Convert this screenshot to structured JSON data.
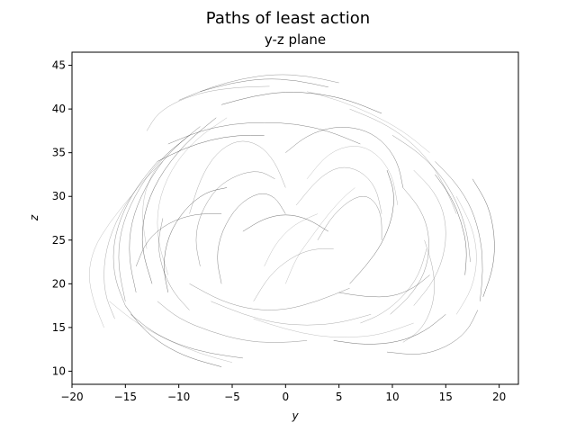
{
  "chart_data": {
    "type": "line",
    "title": "Paths of least action",
    "subtitle": "y-z plane",
    "xlabel": "y",
    "ylabel": "z",
    "xlim": [
      -20,
      21.8
    ],
    "ylim": [
      8.5,
      46.5
    ],
    "xticks": [
      -20,
      -15,
      -10,
      -5,
      0,
      5,
      10,
      15,
      20
    ],
    "yticks": [
      10,
      15,
      20,
      25,
      30,
      35,
      40,
      45
    ],
    "grid": false,
    "legend": "none",
    "line_color": "#000000",
    "series": [
      {
        "x": [
          -17,
          -18,
          -18.5,
          -18,
          -16.5,
          -14.5
        ],
        "y": [
          15,
          18,
          21,
          24,
          27,
          30
        ]
      },
      {
        "x": [
          -16,
          -17,
          -17,
          -16,
          -14,
          -11.5
        ],
        "y": [
          16,
          19,
          23,
          27,
          31,
          34
        ]
      },
      {
        "x": [
          -15,
          -15.7,
          -15.5,
          -14.2,
          -12,
          -9
        ],
        "y": [
          18,
          22,
          26,
          30,
          34,
          37
        ]
      },
      {
        "x": [
          -14,
          -14.7,
          -14.5,
          -13.2,
          -11,
          -8
        ],
        "y": [
          19,
          23,
          27,
          31,
          35,
          38
        ]
      },
      {
        "x": [
          -12.5,
          -13.5,
          -13.3,
          -12,
          -9.5,
          -6.5
        ],
        "y": [
          20,
          24,
          28,
          32,
          36,
          39
        ]
      },
      {
        "x": [
          -11,
          -12,
          -12,
          -10.8,
          -8.5,
          -5.5
        ],
        "y": [
          21,
          25,
          29,
          33,
          36.5,
          39
        ]
      },
      {
        "x": [
          -13,
          -12,
          -10,
          -7.5,
          -4.5,
          -1.5
        ],
        "y": [
          37.5,
          39.5,
          41,
          42,
          42.5,
          42.6
        ]
      },
      {
        "x": [
          -10,
          -7,
          -4,
          -1,
          2,
          5
        ],
        "y": [
          41,
          42.5,
          43.5,
          44,
          43.8,
          43
        ]
      },
      {
        "x": [
          -8,
          -5,
          -2,
          1,
          4
        ],
        "y": [
          42,
          43,
          43.5,
          43.3,
          42.5
        ]
      },
      {
        "x": [
          -6,
          -3,
          0,
          3,
          6,
          9
        ],
        "y": [
          40.5,
          41.5,
          42,
          41.8,
          41,
          39.5
        ]
      },
      {
        "x": [
          2,
          5,
          8,
          11,
          13.5
        ],
        "y": [
          42,
          41,
          39.5,
          37.5,
          35
        ]
      },
      {
        "x": [
          6,
          9,
          11.5,
          13.5,
          15,
          16
        ],
        "y": [
          40,
          38.5,
          36.5,
          34,
          31,
          28
        ]
      },
      {
        "x": [
          10,
          12.5,
          14.5,
          16,
          17,
          17.3
        ],
        "y": [
          37,
          35,
          32.5,
          29.5,
          26,
          22.5
        ]
      },
      {
        "x": [
          14,
          16,
          17.5,
          18.3,
          18.5,
          18.2
        ],
        "y": [
          34,
          31.5,
          28.5,
          25,
          21.5,
          18
        ]
      },
      {
        "x": [
          17.5,
          19,
          19.6,
          19.5,
          18.5
        ],
        "y": [
          32,
          29,
          25.5,
          22,
          18.5
        ]
      },
      {
        "x": [
          16,
          17.5,
          18,
          17.5,
          16
        ],
        "y": [
          30,
          26.5,
          23,
          19.5,
          16.5
        ]
      },
      {
        "x": [
          12,
          14,
          15,
          15,
          14,
          12
        ],
        "y": [
          33,
          30.5,
          27.5,
          24,
          20.5,
          17.5
        ]
      },
      {
        "x": [
          11,
          12.7,
          13.5,
          13.3,
          12,
          9.8
        ],
        "y": [
          31,
          28.5,
          25.5,
          22,
          19,
          16.5
        ]
      },
      {
        "x": [
          18,
          17,
          15,
          12.5,
          9.5
        ],
        "y": [
          17,
          14.5,
          12.7,
          11.8,
          12.2
        ]
      },
      {
        "x": [
          15,
          13,
          10.5,
          7.5,
          4.5
        ],
        "y": [
          16.5,
          14.5,
          13.3,
          13,
          13.5
        ]
      },
      {
        "x": [
          12,
          9,
          6,
          3,
          0,
          -3
        ],
        "y": [
          15.5,
          14.2,
          13.8,
          14,
          14.8,
          16
        ]
      },
      {
        "x": [
          8,
          5,
          2,
          -1,
          -4,
          -7
        ],
        "y": [
          16.5,
          15.5,
          15.2,
          15.5,
          16.5,
          18
        ]
      },
      {
        "x": [
          2,
          -1,
          -4,
          -7,
          -10,
          -12
        ],
        "y": [
          13.5,
          13.2,
          13.5,
          14.5,
          16,
          18
        ]
      },
      {
        "x": [
          -4,
          -7,
          -10,
          -12.5,
          -14.5
        ],
        "y": [
          11.5,
          12,
          13,
          14.5,
          16.5
        ]
      },
      {
        "x": [
          -6,
          -9,
          -11.5,
          -13.5,
          -15
        ],
        "y": [
          10.5,
          11.5,
          13,
          15,
          17.5
        ]
      },
      {
        "x": [
          -5,
          -8,
          -11,
          -14,
          -16.5
        ],
        "y": [
          11,
          12,
          13.5,
          15.5,
          18
        ]
      },
      {
        "x": [
          -9,
          -8,
          -6.5,
          -4.5,
          -2.5,
          -1,
          0
        ],
        "y": [
          28,
          32,
          35,
          36.5,
          36,
          34,
          31
        ]
      },
      {
        "x": [
          -8,
          -8.5,
          -8,
          -6.5,
          -4.5,
          -2.5,
          -1
        ],
        "y": [
          22,
          25,
          28,
          31,
          32.5,
          33,
          32
        ]
      },
      {
        "x": [
          -6,
          -6.5,
          -6,
          -4.5,
          -2.5,
          -1,
          0
        ],
        "y": [
          20,
          23,
          26,
          29,
          30.5,
          30,
          28
        ]
      },
      {
        "x": [
          -11,
          -11.5,
          -11,
          -9.5,
          -7.5,
          -5.5
        ],
        "y": [
          19,
          22,
          25.5,
          28.5,
          30.5,
          31
        ]
      },
      {
        "x": [
          2,
          4,
          6.5,
          8.5,
          10,
          10.5
        ],
        "y": [
          32,
          35,
          36,
          35,
          32.5,
          29
        ]
      },
      {
        "x": [
          1,
          3,
          5,
          7,
          8.5,
          9
        ],
        "y": [
          29,
          32,
          33.5,
          33,
          31,
          28
        ]
      },
      {
        "x": [
          3,
          4.5,
          6.5,
          8,
          9,
          9
        ],
        "y": [
          25,
          28,
          30,
          30,
          28,
          25
        ]
      },
      {
        "x": [
          0,
          2,
          4.5,
          7,
          9,
          10.5,
          11
        ],
        "y": [
          35,
          37,
          38,
          37.8,
          36.5,
          34,
          31
        ]
      },
      {
        "x": [
          6,
          7.5,
          9,
          10,
          10.2,
          9.5
        ],
        "y": [
          20,
          22,
          24.5,
          27.5,
          30.5,
          33
        ]
      },
      {
        "x": [
          0,
          1,
          2.5,
          4,
          5.5,
          6.5
        ],
        "y": [
          20,
          23,
          25.5,
          28,
          30,
          31
        ]
      },
      {
        "x": [
          -3,
          -1.5,
          0.5,
          2.5,
          4.5
        ],
        "y": [
          18,
          21,
          23,
          24,
          24
        ]
      },
      {
        "x": [
          -9,
          -6,
          -3,
          0,
          3,
          6
        ],
        "y": [
          20,
          18,
          17,
          17,
          18,
          19.5
        ]
      },
      {
        "x": [
          -11,
          -8,
          -5,
          -2,
          1,
          4,
          7
        ],
        "y": [
          36,
          37.5,
          38.3,
          38.5,
          38.3,
          37.5,
          36
        ]
      },
      {
        "x": [
          -12,
          -9.5,
          -7,
          -4.5,
          -2
        ],
        "y": [
          34,
          35.5,
          36.5,
          37,
          37
        ]
      },
      {
        "x": [
          -13,
          -13.5,
          -13,
          -11.5,
          -9.5
        ],
        "y": [
          24,
          28,
          31.5,
          34.5,
          36.5
        ]
      },
      {
        "x": [
          13,
          13.8,
          14,
          13.5,
          12.5,
          11
        ],
        "y": [
          25,
          22,
          19,
          16.5,
          14.5,
          13.3
        ]
      },
      {
        "x": [
          -9,
          -10.5,
          -11.5,
          -12,
          -11.5
        ],
        "y": [
          17,
          19,
          21.5,
          24.5,
          27.5
        ]
      },
      {
        "x": [
          5,
          7.5,
          10,
          12,
          13.5
        ],
        "y": [
          19,
          18.5,
          18.5,
          19.5,
          21
        ]
      },
      {
        "x": [
          -4,
          -2,
          0,
          2,
          4
        ],
        "y": [
          26,
          27.5,
          28,
          27.5,
          26
        ]
      },
      {
        "x": [
          -2,
          -1,
          0.5,
          2,
          3
        ],
        "y": [
          22,
          24.5,
          26.5,
          27.5,
          28
        ]
      },
      {
        "x": [
          7,
          9,
          11,
          12.5,
          13.2
        ],
        "y": [
          15.5,
          16.5,
          18.5,
          21,
          24
        ]
      },
      {
        "x": [
          -15,
          -16,
          -16.2,
          -15.5,
          -14,
          -12
        ],
        "y": [
          17.5,
          20.5,
          24,
          27.5,
          31,
          34
        ]
      },
      {
        "x": [
          -14,
          -13,
          -11,
          -8.5,
          -6
        ],
        "y": [
          22,
          25,
          27,
          28,
          28
        ]
      },
      {
        "x": [
          14,
          15.5,
          16.5,
          17,
          16.8
        ],
        "y": [
          32.5,
          30,
          27,
          24,
          21
        ]
      }
    ]
  }
}
